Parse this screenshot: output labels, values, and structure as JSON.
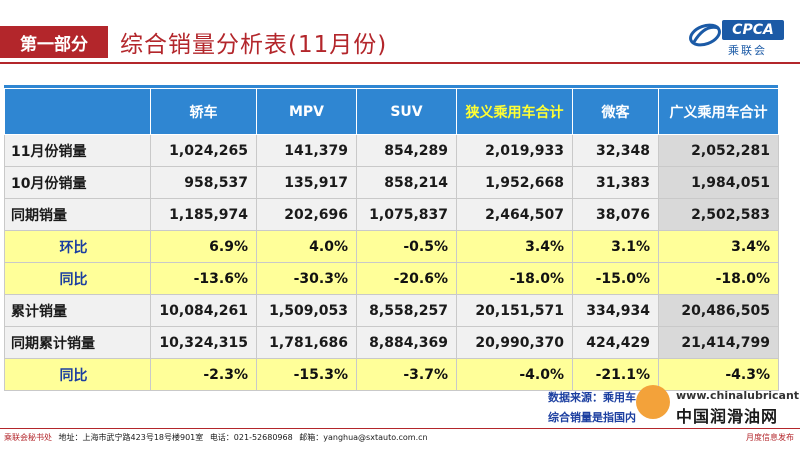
{
  "header": {
    "section": "第一部分",
    "title": "综合销量分析表(11月份)",
    "logo_text": "CPCA",
    "logo_cn": "乘联会"
  },
  "table": {
    "columns": [
      "",
      "轿车",
      "MPV",
      "SUV",
      "狭义乘用车合计",
      "微客",
      "广义乘用车合计"
    ],
    "rows": [
      {
        "label": "11月份销量",
        "values": [
          "1,024,265",
          "141,379",
          "854,289",
          "2,019,933",
          "32,348",
          "2,052,281"
        ],
        "pct": false
      },
      {
        "label": "10月份销量",
        "values": [
          "958,537",
          "135,917",
          "858,214",
          "1,952,668",
          "31,383",
          "1,984,051"
        ],
        "pct": false
      },
      {
        "label": "同期销量",
        "values": [
          "1,185,974",
          "202,696",
          "1,075,837",
          "2,464,507",
          "38,076",
          "2,502,583"
        ],
        "pct": false
      },
      {
        "label": "环比",
        "values": [
          "6.9%",
          "4.0%",
          "-0.5%",
          "3.4%",
          "3.1%",
          "3.4%"
        ],
        "pct": true
      },
      {
        "label": "同比",
        "values": [
          "-13.6%",
          "-30.3%",
          "-20.6%",
          "-18.0%",
          "-15.0%",
          "-18.0%"
        ],
        "pct": true
      },
      {
        "label": "累计销量",
        "values": [
          "10,084,261",
          "1,509,053",
          "8,558,257",
          "20,151,571",
          "334,934",
          "20,486,505"
        ],
        "pct": false
      },
      {
        "label": "同期累计销量",
        "values": [
          "10,324,315",
          "1,781,686",
          "8,884,369",
          "20,990,370",
          "424,429",
          "21,414,799"
        ],
        "pct": false
      },
      {
        "label": "同比",
        "values": [
          "-2.3%",
          "-15.3%",
          "-3.7%",
          "-4.0%",
          "-21.1%",
          "-4.3%"
        ],
        "pct": true
      }
    ]
  },
  "notes": {
    "line1": "数据来源：乘用车",
    "line2": "综合销量是指国内"
  },
  "watermark": {
    "url": "www.chinalubricant.com",
    "name": "中国润滑油网"
  },
  "footer": {
    "org": "乘联会秘书处",
    "address": "地址：上海市武宁路423号18号楼901室",
    "phone": "电话：021-52680968",
    "email": "邮箱：yanghua@sxtauto.com.cn",
    "right": "月度信息发布"
  }
}
